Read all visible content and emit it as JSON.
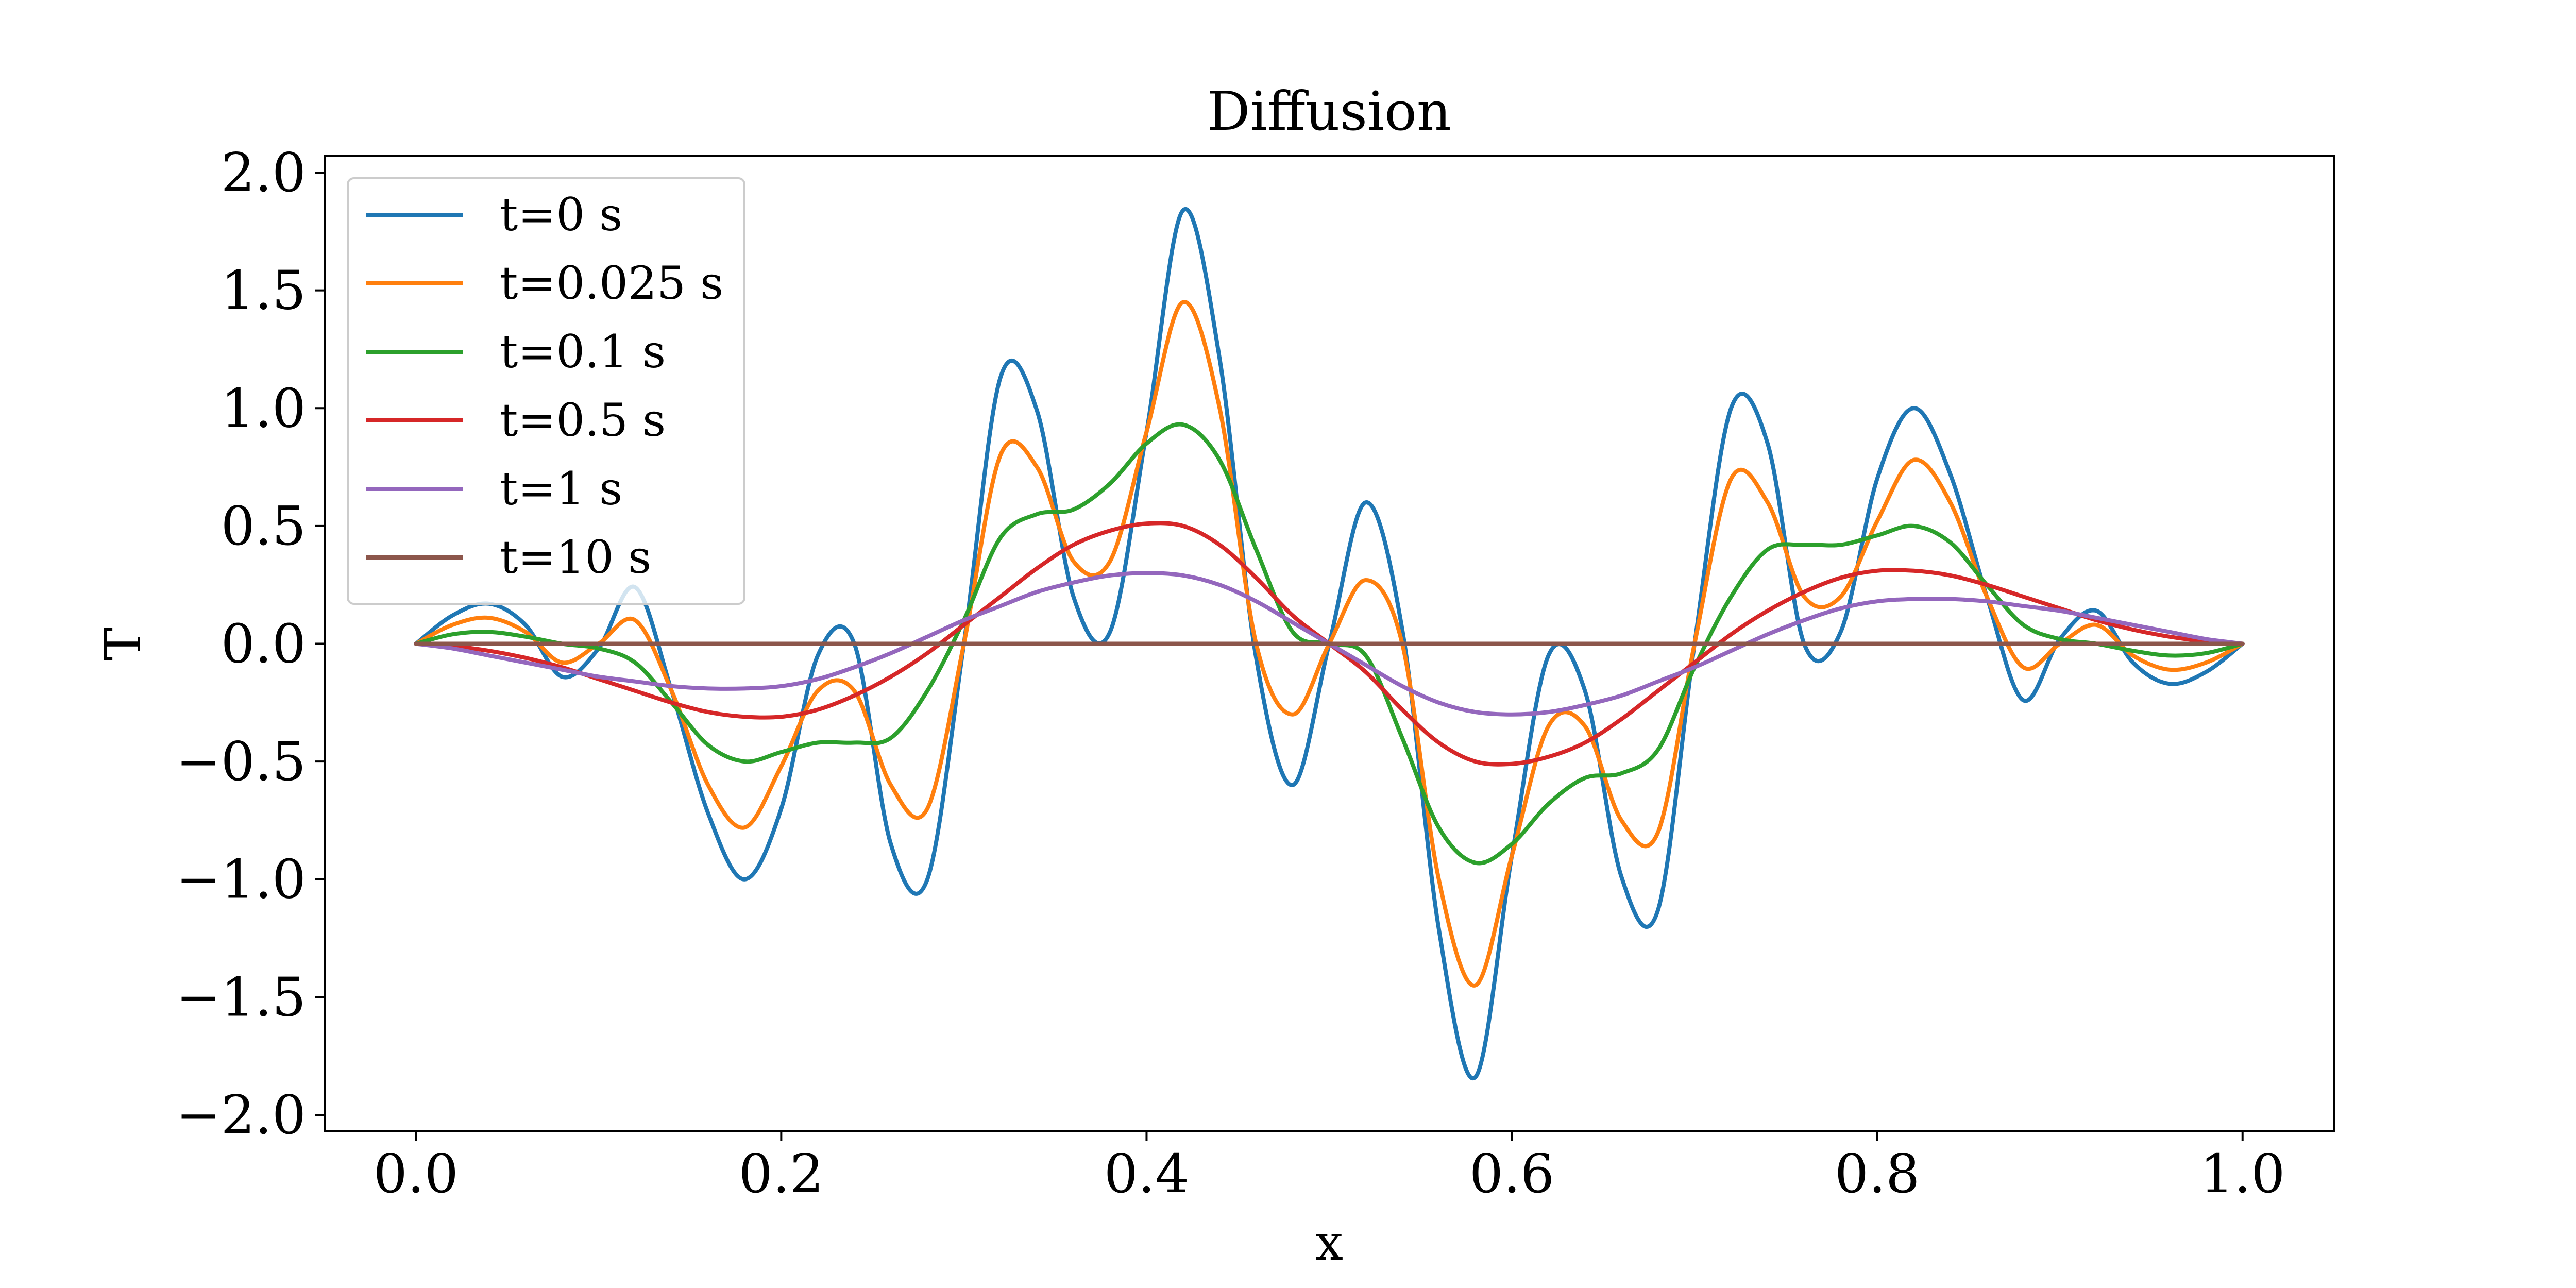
{
  "chart_data": {
    "type": "line",
    "title": "Diffusion",
    "xlabel": "x",
    "ylabel": "T",
    "xlim": [
      -0.05,
      1.05
    ],
    "ylim": [
      -2.07,
      2.07
    ],
    "xticks": [
      0.0,
      0.2,
      0.4,
      0.6,
      0.8,
      1.0
    ],
    "xtick_labels": [
      "0.0",
      "0.2",
      "0.4",
      "0.6",
      "0.8",
      "1.0"
    ],
    "yticks": [
      -2.0,
      -1.5,
      -1.0,
      -0.5,
      0.0,
      0.5,
      1.0,
      1.5,
      2.0
    ],
    "ytick_labels": [
      "−2.0",
      "−1.5",
      "−1.0",
      "−0.5",
      "0.0",
      "0.5",
      "1.0",
      "1.5",
      "2.0"
    ],
    "grid": false,
    "legend": "upper left",
    "x": [
      0.0,
      0.02,
      0.04,
      0.06,
      0.08,
      0.1,
      0.12,
      0.14,
      0.16,
      0.18,
      0.2,
      0.22,
      0.24,
      0.26,
      0.28,
      0.3,
      0.32,
      0.34,
      0.36,
      0.38,
      0.4,
      0.42,
      0.44,
      0.46,
      0.48,
      0.5,
      0.52,
      0.54,
      0.56,
      0.58,
      0.6,
      0.62,
      0.64,
      0.66,
      0.68,
      0.7,
      0.72,
      0.74,
      0.76,
      0.78,
      0.8,
      0.82,
      0.84,
      0.86,
      0.88,
      0.9,
      0.92,
      0.94,
      0.96,
      0.98,
      1.0
    ],
    "series": [
      {
        "name": "t=0 s",
        "color": "#1f77b4",
        "values": [
          0.0,
          0.12,
          0.17,
          0.08,
          -0.14,
          -0.02,
          0.24,
          -0.2,
          -0.72,
          -1.0,
          -0.7,
          -0.05,
          0.0,
          -0.85,
          -1.0,
          0.0,
          1.13,
          0.99,
          0.2,
          0.05,
          0.9,
          1.84,
          1.21,
          -0.06,
          -0.6,
          0.0,
          0.6,
          0.06,
          -1.21,
          -1.84,
          -0.9,
          -0.05,
          -0.2,
          -0.99,
          -1.13,
          0.0,
          1.0,
          0.85,
          0.0,
          0.05,
          0.7,
          1.0,
          0.72,
          0.2,
          -0.24,
          0.02,
          0.14,
          -0.08,
          -0.17,
          -0.12,
          0.0
        ]
      },
      {
        "name": "t=0.025 s",
        "color": "#ff7f0e",
        "values": [
          0.0,
          0.08,
          0.11,
          0.05,
          -0.08,
          0.0,
          0.1,
          -0.2,
          -0.6,
          -0.78,
          -0.52,
          -0.2,
          -0.2,
          -0.6,
          -0.7,
          0.0,
          0.8,
          0.75,
          0.35,
          0.35,
          0.9,
          1.45,
          1.0,
          0.0,
          -0.3,
          0.0,
          0.27,
          0.0,
          -1.0,
          -1.45,
          -0.9,
          -0.35,
          -0.35,
          -0.75,
          -0.8,
          0.0,
          0.7,
          0.6,
          0.2,
          0.2,
          0.52,
          0.78,
          0.6,
          0.2,
          -0.1,
          0.0,
          0.08,
          -0.05,
          -0.11,
          -0.08,
          0.0
        ]
      },
      {
        "name": "t=0.1 s",
        "color": "#2ca02c",
        "values": [
          0.0,
          0.04,
          0.05,
          0.03,
          0.0,
          -0.02,
          -0.08,
          -0.25,
          -0.43,
          -0.5,
          -0.46,
          -0.42,
          -0.42,
          -0.4,
          -0.2,
          0.1,
          0.45,
          0.55,
          0.57,
          0.68,
          0.85,
          0.93,
          0.78,
          0.4,
          0.05,
          0.0,
          -0.05,
          -0.4,
          -0.78,
          -0.93,
          -0.85,
          -0.68,
          -0.57,
          -0.55,
          -0.45,
          -0.1,
          0.2,
          0.4,
          0.42,
          0.42,
          0.46,
          0.5,
          0.43,
          0.25,
          0.08,
          0.02,
          0.0,
          -0.03,
          -0.05,
          -0.04,
          0.0
        ]
      },
      {
        "name": "t=0.5 s",
        "color": "#d62728",
        "values": [
          0.0,
          -0.01,
          -0.03,
          -0.06,
          -0.1,
          -0.15,
          -0.2,
          -0.25,
          -0.29,
          -0.31,
          -0.31,
          -0.28,
          -0.22,
          -0.14,
          -0.04,
          0.08,
          0.2,
          0.32,
          0.42,
          0.48,
          0.51,
          0.5,
          0.42,
          0.28,
          0.12,
          0.0,
          -0.12,
          -0.28,
          -0.42,
          -0.5,
          -0.51,
          -0.48,
          -0.42,
          -0.32,
          -0.2,
          -0.08,
          0.04,
          0.14,
          0.22,
          0.28,
          0.31,
          0.31,
          0.29,
          0.25,
          0.2,
          0.15,
          0.1,
          0.06,
          0.03,
          0.01,
          0.0
        ]
      },
      {
        "name": "t=1 s",
        "color": "#9467bd",
        "values": [
          0.0,
          -0.02,
          -0.05,
          -0.08,
          -0.11,
          -0.14,
          -0.16,
          -0.18,
          -0.19,
          -0.19,
          -0.18,
          -0.15,
          -0.1,
          -0.04,
          0.03,
          0.1,
          0.16,
          0.22,
          0.26,
          0.29,
          0.3,
          0.29,
          0.25,
          0.18,
          0.09,
          0.0,
          -0.09,
          -0.18,
          -0.25,
          -0.29,
          -0.3,
          -0.29,
          -0.26,
          -0.22,
          -0.16,
          -0.1,
          -0.03,
          0.04,
          0.1,
          0.15,
          0.18,
          0.19,
          0.19,
          0.18,
          0.16,
          0.14,
          0.11,
          0.08,
          0.05,
          0.02,
          0.0
        ]
      },
      {
        "name": "t=10 s",
        "color": "#8c564b",
        "values": [
          0.0,
          0.0,
          0.0,
          0.0,
          0.0,
          0.0,
          0.0,
          0.0,
          0.0,
          0.0,
          0.0,
          0.0,
          0.0,
          0.0,
          0.0,
          0.0,
          0.0,
          0.0,
          0.0,
          0.0,
          0.0,
          0.0,
          0.0,
          0.0,
          0.0,
          0.0,
          0.0,
          0.0,
          0.0,
          0.0,
          0.0,
          0.0,
          0.0,
          0.0,
          0.0,
          0.0,
          0.0,
          0.0,
          0.0,
          0.0,
          0.0,
          0.0,
          0.0,
          0.0,
          0.0,
          0.0,
          0.0,
          0.0,
          0.0,
          0.0,
          0.0
        ]
      }
    ]
  }
}
